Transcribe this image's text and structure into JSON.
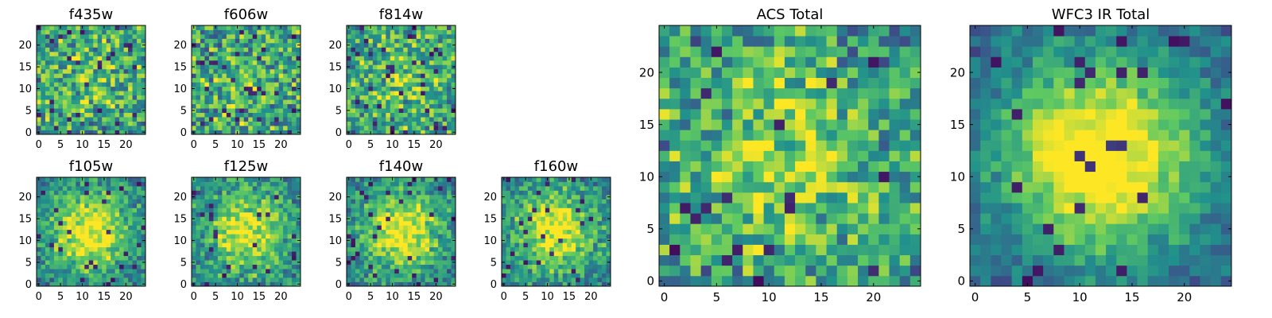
{
  "figure_title": "",
  "chart_data": [
    {
      "type": "heatmap",
      "title": "f435w",
      "grid": [
        25,
        25
      ],
      "seed": 11,
      "noise": 0.85,
      "blob": 0.15,
      "xticks": [
        0,
        5,
        10,
        15,
        20
      ],
      "yticks": [
        0,
        5,
        10,
        15,
        20
      ],
      "xlim": [
        0,
        25
      ],
      "ylim": [
        0,
        25
      ]
    },
    {
      "type": "heatmap",
      "title": "f606w",
      "grid": [
        25,
        25
      ],
      "seed": 23,
      "noise": 0.85,
      "blob": 0.12,
      "xticks": [
        0,
        5,
        10,
        15,
        20
      ],
      "yticks": [
        0,
        5,
        10,
        15,
        20
      ],
      "xlim": [
        0,
        25
      ],
      "ylim": [
        0,
        25
      ]
    },
    {
      "type": "heatmap",
      "title": "f814w",
      "grid": [
        25,
        25
      ],
      "seed": 37,
      "noise": 0.82,
      "blob": 0.18,
      "xticks": [
        0,
        5,
        10,
        15,
        20
      ],
      "yticks": [
        0,
        5,
        10,
        15,
        20
      ],
      "xlim": [
        0,
        25
      ],
      "ylim": [
        0,
        25
      ]
    },
    {
      "type": "heatmap",
      "title": "f105w",
      "grid": [
        25,
        25
      ],
      "seed": 41,
      "noise": 0.55,
      "blob": 0.6,
      "xticks": [
        0,
        5,
        10,
        15,
        20
      ],
      "yticks": [
        0,
        5,
        10,
        15,
        20
      ],
      "xlim": [
        0,
        25
      ],
      "ylim": [
        0,
        25
      ]
    },
    {
      "type": "heatmap",
      "title": "f125w",
      "grid": [
        25,
        25
      ],
      "seed": 53,
      "noise": 0.6,
      "blob": 0.5,
      "xticks": [
        0,
        5,
        10,
        15,
        20
      ],
      "yticks": [
        0,
        5,
        10,
        15,
        20
      ],
      "xlim": [
        0,
        25
      ],
      "ylim": [
        0,
        25
      ]
    },
    {
      "type": "heatmap",
      "title": "f140w",
      "grid": [
        25,
        25
      ],
      "seed": 67,
      "noise": 0.55,
      "blob": 0.6,
      "xticks": [
        0,
        5,
        10,
        15,
        20
      ],
      "yticks": [
        0,
        5,
        10,
        15,
        20
      ],
      "xlim": [
        0,
        25
      ],
      "ylim": [
        0,
        25
      ]
    },
    {
      "type": "heatmap",
      "title": "f160w",
      "grid": [
        25,
        25
      ],
      "seed": 79,
      "noise": 0.58,
      "blob": 0.55,
      "xticks": [
        0,
        5,
        10,
        15,
        20
      ],
      "yticks": [
        0,
        5,
        10,
        15,
        20
      ],
      "xlim": [
        0,
        25
      ],
      "ylim": [
        0,
        25
      ]
    },
    {
      "type": "heatmap",
      "title": "ACS Total",
      "grid": [
        25,
        25
      ],
      "seed": 97,
      "noise": 0.78,
      "blob": 0.28,
      "xticks": [
        0,
        5,
        10,
        15,
        20
      ],
      "yticks": [
        0,
        5,
        10,
        15,
        20
      ],
      "xlim": [
        0,
        25
      ],
      "ylim": [
        0,
        25
      ]
    },
    {
      "type": "heatmap",
      "title": "WFC3 IR Total",
      "grid": [
        25,
        25
      ],
      "seed": 113,
      "noise": 0.35,
      "blob": 0.8,
      "xticks": [
        0,
        5,
        10,
        15,
        20
      ],
      "yticks": [
        0,
        5,
        10,
        15,
        20
      ],
      "xlim": [
        0,
        25
      ],
      "ylim": [
        0,
        25
      ]
    }
  ],
  "colormap": {
    "name": "viridis",
    "stops": [
      "#440154",
      "#3b528b",
      "#21918c",
      "#5ec962",
      "#fde725"
    ]
  }
}
